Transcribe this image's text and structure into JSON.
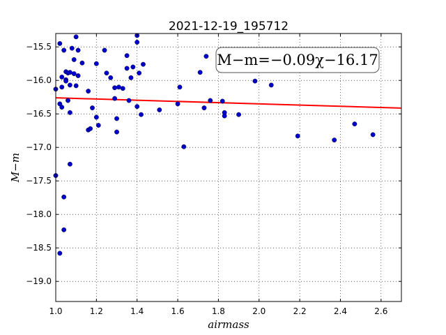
{
  "chart_data": {
    "type": "scatter",
    "title": "2021-12-19_195712",
    "xlabel": "airmass",
    "ylabel": "M−m",
    "xlim": [
      1.0,
      2.7
    ],
    "ylim": [
      -19.3,
      -15.3
    ],
    "y_inverted": true,
    "grid": true,
    "grid_style": "dotted",
    "xticks": [
      1.0,
      1.2,
      1.4,
      1.6,
      1.8,
      2.0,
      2.2,
      2.4,
      2.6
    ],
    "yticks": [
      -15.5,
      -16.0,
      -16.5,
      -17.0,
      -17.5,
      -18.0,
      -18.5,
      -19.0
    ],
    "annotation": "M−m=−0.09χ−16.17",
    "fit": {
      "slope": -0.09,
      "intercept": -16.17
    },
    "colors": {
      "points": "#0000cc",
      "fit_line": "#ff0000"
    },
    "points": [
      {
        "x": 1.0,
        "y": -16.13
      },
      {
        "x": 1.0,
        "y": -17.42
      },
      {
        "x": 1.02,
        "y": -15.45
      },
      {
        "x": 1.02,
        "y": -16.35
      },
      {
        "x": 1.02,
        "y": -18.58
      },
      {
        "x": 1.03,
        "y": -16.4
      },
      {
        "x": 1.03,
        "y": -16.1
      },
      {
        "x": 1.03,
        "y": -15.95
      },
      {
        "x": 1.04,
        "y": -15.55
      },
      {
        "x": 1.04,
        "y": -17.74
      },
      {
        "x": 1.04,
        "y": -18.23
      },
      {
        "x": 1.05,
        "y": -15.87
      },
      {
        "x": 1.05,
        "y": -15.99
      },
      {
        "x": 1.05,
        "y": -16.01
      },
      {
        "x": 1.06,
        "y": -16.3
      },
      {
        "x": 1.06,
        "y": -15.89
      },
      {
        "x": 1.07,
        "y": -15.88
      },
      {
        "x": 1.07,
        "y": -16.07
      },
      {
        "x": 1.07,
        "y": -17.25
      },
      {
        "x": 1.07,
        "y": -16.48
      },
      {
        "x": 1.08,
        "y": -15.52
      },
      {
        "x": 1.09,
        "y": -15.69
      },
      {
        "x": 1.09,
        "y": -15.9
      },
      {
        "x": 1.1,
        "y": -15.35
      },
      {
        "x": 1.1,
        "y": -16.08
      },
      {
        "x": 1.11,
        "y": -15.93
      },
      {
        "x": 1.11,
        "y": -15.55
      },
      {
        "x": 1.13,
        "y": -15.74
      },
      {
        "x": 1.16,
        "y": -16.16
      },
      {
        "x": 1.16,
        "y": -16.74
      },
      {
        "x": 1.17,
        "y": -16.72
      },
      {
        "x": 1.18,
        "y": -16.41
      },
      {
        "x": 1.2,
        "y": -15.75
      },
      {
        "x": 1.2,
        "y": -16.55
      },
      {
        "x": 1.21,
        "y": -16.67
      },
      {
        "x": 1.24,
        "y": -15.55
      },
      {
        "x": 1.25,
        "y": -15.89
      },
      {
        "x": 1.27,
        "y": -15.96
      },
      {
        "x": 1.29,
        "y": -16.11
      },
      {
        "x": 1.29,
        "y": -16.27
      },
      {
        "x": 1.3,
        "y": -16.57
      },
      {
        "x": 1.3,
        "y": -16.77
      },
      {
        "x": 1.31,
        "y": -16.1
      },
      {
        "x": 1.33,
        "y": -16.12
      },
      {
        "x": 1.35,
        "y": -15.82
      },
      {
        "x": 1.35,
        "y": -15.63
      },
      {
        "x": 1.36,
        "y": -16.3
      },
      {
        "x": 1.37,
        "y": -15.96
      },
      {
        "x": 1.38,
        "y": -15.8
      },
      {
        "x": 1.4,
        "y": -16.39
      },
      {
        "x": 1.4,
        "y": -15.33
      },
      {
        "x": 1.4,
        "y": -15.43
      },
      {
        "x": 1.41,
        "y": -15.89
      },
      {
        "x": 1.42,
        "y": -16.51
      },
      {
        "x": 1.43,
        "y": -15.76
      },
      {
        "x": 1.51,
        "y": -16.44
      },
      {
        "x": 1.6,
        "y": -16.35
      },
      {
        "x": 1.61,
        "y": -16.1
      },
      {
        "x": 1.63,
        "y": -16.99
      },
      {
        "x": 1.71,
        "y": -15.88
      },
      {
        "x": 1.73,
        "y": -16.41
      },
      {
        "x": 1.74,
        "y": -15.64
      },
      {
        "x": 1.76,
        "y": -16.3
      },
      {
        "x": 1.82,
        "y": -16.31
      },
      {
        "x": 1.83,
        "y": -16.48
      },
      {
        "x": 1.83,
        "y": -16.53
      },
      {
        "x": 1.9,
        "y": -16.51
      },
      {
        "x": 1.98,
        "y": -16.01
      },
      {
        "x": 2.06,
        "y": -16.07
      },
      {
        "x": 2.19,
        "y": -16.83
      },
      {
        "x": 2.37,
        "y": -16.89
      },
      {
        "x": 2.47,
        "y": -16.65
      },
      {
        "x": 2.56,
        "y": -16.81
      }
    ]
  }
}
